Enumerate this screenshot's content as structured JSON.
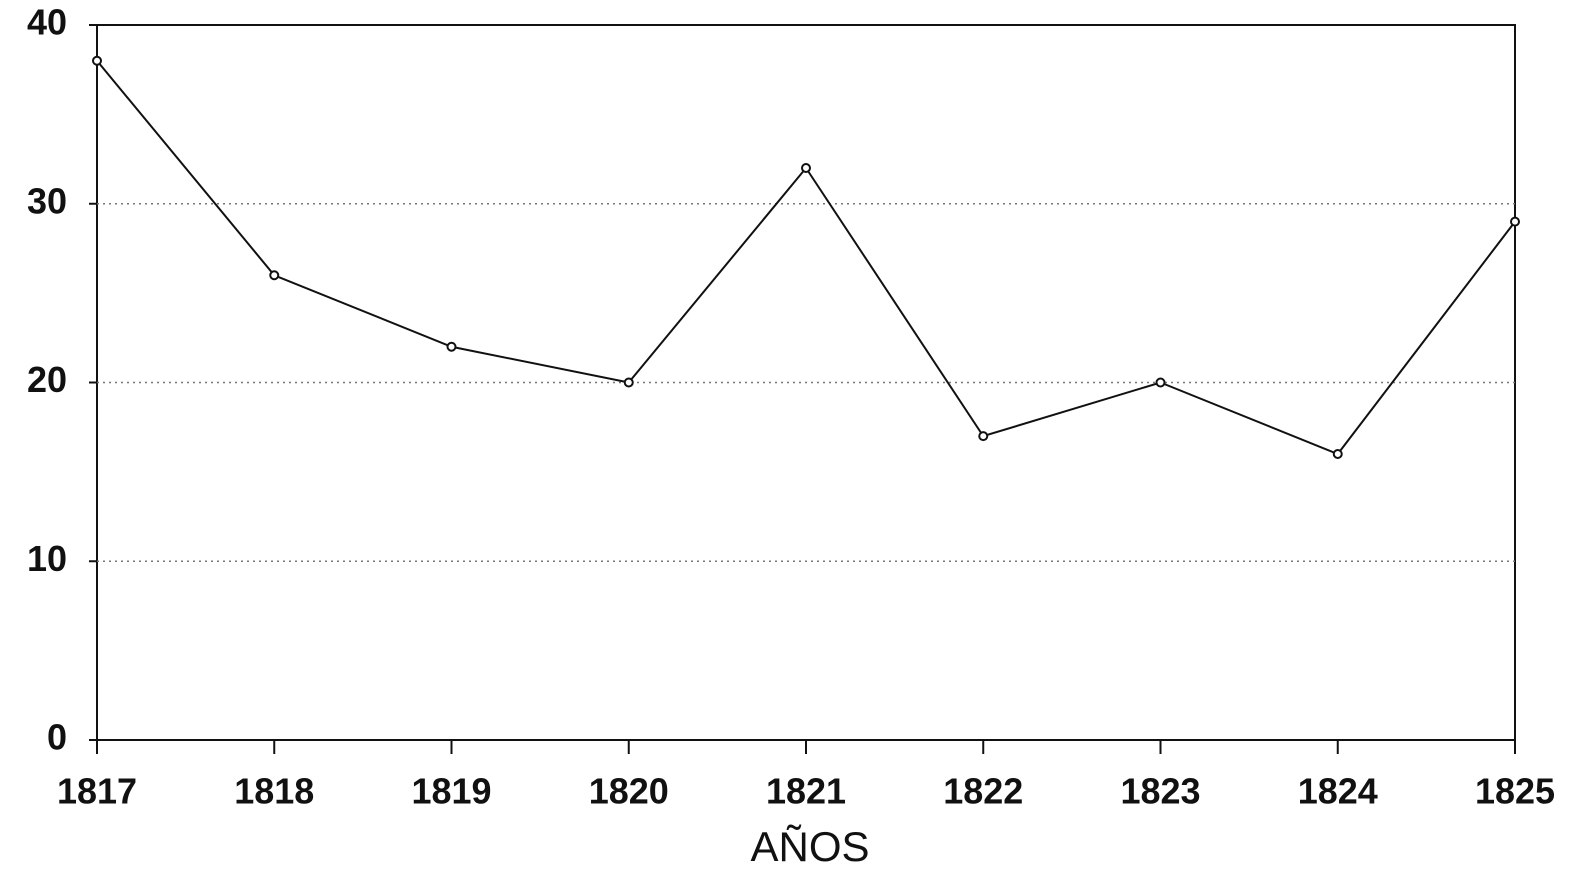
{
  "chart_data": {
    "type": "line",
    "x": [
      1817,
      1818,
      1819,
      1820,
      1821,
      1822,
      1823,
      1824,
      1825
    ],
    "series": [
      {
        "color": "#111111",
        "values": [
          38,
          26,
          22,
          20,
          32,
          17,
          20,
          16,
          29
        ]
      }
    ],
    "xlim": [
      1817,
      1825
    ],
    "xticks": [
      1817,
      1818,
      1819,
      1820,
      1821,
      1822,
      1823,
      1824,
      1825
    ],
    "ylim": [
      0,
      40
    ],
    "yticks": [
      0,
      10,
      20,
      30,
      40
    ],
    "xlabel": "AÑOS",
    "grid": true
  }
}
